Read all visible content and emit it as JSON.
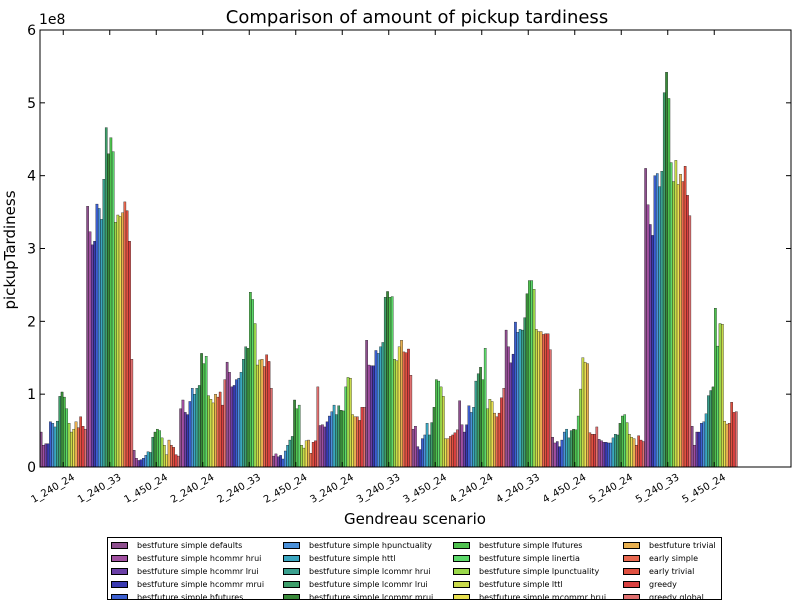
{
  "chart_data": {
    "type": "bar",
    "title": "Comparison of amount of pickup tardiness",
    "xlabel": "Gendreau scenario",
    "ylabel": "pickupTardiness",
    "y_multiplier_label": "1e8",
    "y_scale": 100000000,
    "ylim": [
      0,
      6
    ],
    "yticks": [
      "0",
      "1",
      "2",
      "3",
      "4",
      "5",
      "6"
    ],
    "grid": false,
    "legend_position": "bottom",
    "categories": [
      "1_240_24",
      "1_240_33",
      "1_450_24",
      "2_240_24",
      "2_240_33",
      "2_450_24",
      "3_240_24",
      "3_240_33",
      "3_450_24",
      "4_240_24",
      "4_240_33",
      "4_450_24",
      "5_240_24",
      "5_240_33",
      "5_450_24"
    ],
    "series": [
      {
        "name": "bestfuture simple defaults",
        "color": "#8e4f8e",
        "values": [
          0.48,
          3.58,
          0.23,
          0.8,
          1.44,
          0.15,
          0.57,
          1.74,
          0.52,
          0.91,
          1.88,
          0.41,
          0.38,
          4.1,
          0.56
        ]
      },
      {
        "name": "bestfuture simple hcommr hrui",
        "color": "#a04fa0",
        "values": [
          0.3,
          3.23,
          0.12,
          0.92,
          1.3,
          0.18,
          0.58,
          1.4,
          0.56,
          0.58,
          1.65,
          0.33,
          0.36,
          3.6,
          0.3
        ]
      },
      {
        "name": "bestfuture simple hcommr lrui",
        "color": "#6a3fa6",
        "values": [
          0.32,
          3.05,
          0.09,
          0.75,
          1.1,
          0.14,
          0.55,
          1.39,
          0.28,
          0.48,
          1.43,
          0.35,
          0.34,
          3.33,
          0.48
        ]
      },
      {
        "name": "bestfuture simple hcommr mrui",
        "color": "#3a3ab0",
        "values": [
          0.32,
          3.1,
          0.1,
          0.72,
          1.12,
          0.16,
          0.62,
          1.39,
          0.24,
          0.58,
          1.55,
          0.28,
          0.34,
          3.18,
          0.48
        ]
      },
      {
        "name": "bestfuture simple hfutures",
        "color": "#3c5fd0",
        "values": [
          0.62,
          3.61,
          0.12,
          0.9,
          1.2,
          0.11,
          0.7,
          1.6,
          0.39,
          0.84,
          1.99,
          0.37,
          0.33,
          4.0,
          0.6
        ]
      },
      {
        "name": "bestfuture simple hpunctuality",
        "color": "#4a90d9",
        "values": [
          0.6,
          3.55,
          0.16,
          1.08,
          1.22,
          0.22,
          0.76,
          1.56,
          0.44,
          0.75,
          1.85,
          0.48,
          0.33,
          4.03,
          0.62
        ]
      },
      {
        "name": "bestfuture simple httl",
        "color": "#3aa6c0",
        "values": [
          0.55,
          3.4,
          0.21,
          1.0,
          1.3,
          0.3,
          0.85,
          1.65,
          0.6,
          0.82,
          1.89,
          0.52,
          0.4,
          3.85,
          0.73
        ]
      },
      {
        "name": "bestfuture simple lcommr hrui",
        "color": "#3aa08e",
        "values": [
          0.63,
          3.95,
          0.2,
          1.08,
          1.48,
          0.37,
          0.72,
          1.71,
          0.44,
          1.18,
          1.88,
          0.4,
          0.45,
          4.06,
          0.98
        ]
      },
      {
        "name": "bestfuture simple lcommr lrui",
        "color": "#3d9e6a",
        "values": [
          0.97,
          4.66,
          0.41,
          1.12,
          1.65,
          0.42,
          0.84,
          2.33,
          0.61,
          1.28,
          2.05,
          0.5,
          0.44,
          5.14,
          1.05
        ]
      },
      {
        "name": "bestfuture simple lcommr mrui",
        "color": "#3a8a3a",
        "values": [
          1.03,
          4.3,
          0.48,
          1.56,
          1.63,
          0.92,
          0.78,
          2.41,
          0.82,
          1.37,
          2.38,
          0.52,
          0.6,
          5.42,
          1.1
        ]
      },
      {
        "name": "bestfuture simple lfutures",
        "color": "#4ec04e",
        "values": [
          0.96,
          4.52,
          0.52,
          1.42,
          2.4,
          0.8,
          0.77,
          2.33,
          1.2,
          1.2,
          2.56,
          0.51,
          0.7,
          5.06,
          2.18
        ]
      },
      {
        "name": "bestfuture simple linertia",
        "color": "#5cd86a",
        "values": [
          0.8,
          4.33,
          0.5,
          1.52,
          2.3,
          0.85,
          1.1,
          2.34,
          1.18,
          1.63,
          2.56,
          0.7,
          0.72,
          4.18,
          1.66
        ]
      },
      {
        "name": "bestfuture simple lpunctuality",
        "color": "#9ad84a",
        "values": [
          0.6,
          3.36,
          0.4,
          0.98,
          1.97,
          0.3,
          1.23,
          1.48,
          1.1,
          0.8,
          2.44,
          1.07,
          0.61,
          3.92,
          1.97
        ]
      },
      {
        "name": "bestfuture simple lttl",
        "color": "#c8d94a",
        "values": [
          0.48,
          3.46,
          0.3,
          0.93,
          1.4,
          0.26,
          1.22,
          1.46,
          0.97,
          0.93,
          1.89,
          1.5,
          0.45,
          4.21,
          1.96
        ]
      },
      {
        "name": "bestfuture simple mcommr hrui",
        "color": "#e8e050",
        "values": [
          0.52,
          3.44,
          0.17,
          0.88,
          1.47,
          0.36,
          0.72,
          1.65,
          0.39,
          0.9,
          1.86,
          1.44,
          0.41,
          3.88,
          0.63
        ]
      },
      {
        "name": "bestfuture trivial",
        "color": "#e8b050",
        "values": [
          0.62,
          3.49,
          0.37,
          1.0,
          1.48,
          0.37,
          0.69,
          1.74,
          0.39,
          0.74,
          1.86,
          1.42,
          0.39,
          4.02,
          0.59
        ]
      },
      {
        "name": "early simple",
        "color": "#e86850",
        "values": [
          0.54,
          3.64,
          0.3,
          0.96,
          1.38,
          0.19,
          0.69,
          1.58,
          0.42,
          0.69,
          1.82,
          0.47,
          0.3,
          3.92,
          0.6
        ]
      },
      {
        "name": "early trivial",
        "color": "#e05040",
        "values": [
          0.69,
          3.52,
          0.27,
          1.03,
          1.54,
          0.34,
          0.64,
          1.57,
          0.44,
          0.74,
          1.83,
          0.45,
          0.43,
          4.13,
          0.89
        ]
      },
      {
        "name": "greedy",
        "color": "#d84040",
        "values": [
          0.56,
          3.1,
          0.17,
          0.85,
          1.45,
          0.36,
          0.82,
          1.62,
          0.47,
          0.95,
          1.83,
          0.45,
          0.37,
          3.73,
          0.75
        ]
      },
      {
        "name": "greedy global",
        "color": "#e07070",
        "values": [
          0.52,
          1.48,
          0.15,
          1.2,
          1.08,
          1.1,
          0.82,
          1.26,
          0.51,
          1.08,
          1.61,
          0.55,
          0.35,
          3.45,
          0.76
        ]
      }
    ]
  }
}
